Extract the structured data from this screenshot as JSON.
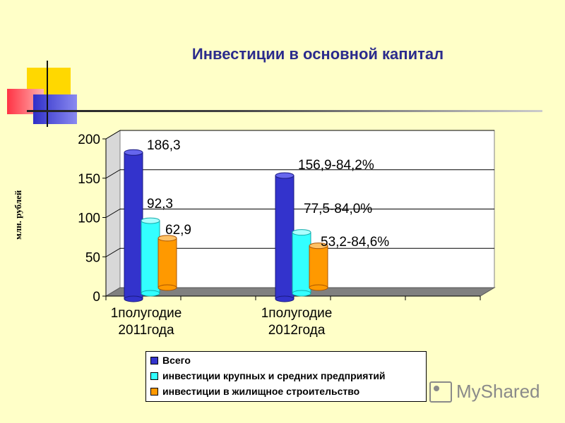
{
  "title": "Инвестиции в основной капитал",
  "watermark": "MyShared",
  "colors": {
    "background": "#FFFFC8",
    "title": "#2B2B8C",
    "series1": "#3333CC",
    "series2": "#33FFFF",
    "series3": "#FF9900"
  },
  "chart_data": {
    "type": "bar",
    "title": "",
    "ylabel": "млн. рублей",
    "xlabel": "",
    "ylim": [
      0,
      200
    ],
    "yticks": [
      "0",
      "50",
      "100",
      "150",
      "200"
    ],
    "categories": [
      "1полугодие 2011года",
      "1полугодие 2012года"
    ],
    "category_lines": [
      [
        "1полугодие",
        "2011года"
      ],
      [
        "1полугодие",
        "2012года"
      ]
    ],
    "series": [
      {
        "name": "Всего",
        "values": [
          186.3,
          156.9
        ],
        "labels": [
          "186,3",
          "156,9-84,2%"
        ]
      },
      {
        "name": "инвестиции крупных и средних предприятий",
        "values": [
          92.3,
          77.5
        ],
        "labels": [
          "92,3",
          "77,5-84,0%"
        ]
      },
      {
        "name": "инвестиции в жилищное строительство",
        "values": [
          62.9,
          53.2
        ],
        "labels": [
          "62,9",
          "53,2-84,6%"
        ]
      }
    ],
    "grid": true,
    "legend_position": "bottom"
  }
}
